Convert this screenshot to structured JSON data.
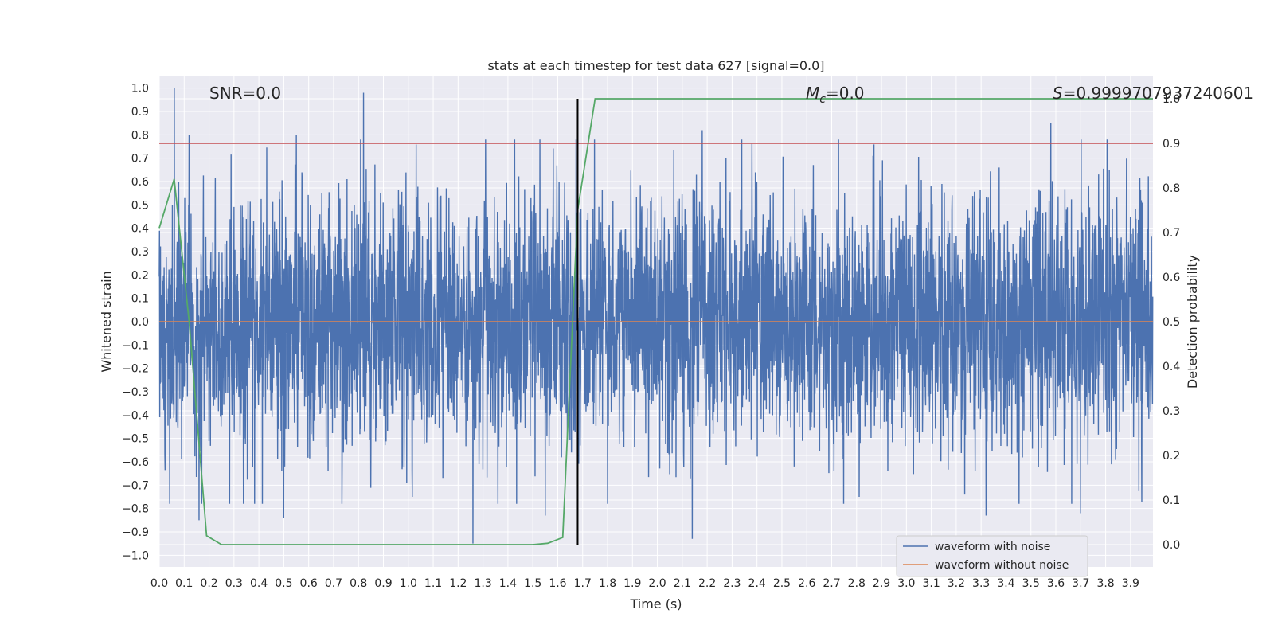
{
  "chart_data": {
    "type": "line",
    "title": "stats at each timestep for test data 627 [signal=0.0]",
    "xlabel": "Time (s)",
    "ylabel": "Whitened strain",
    "y2label": "Detection probability",
    "xlim": [
      0.0,
      3.99
    ],
    "ylim": [
      -1.05,
      1.05
    ],
    "y2lim": [
      -0.05,
      1.05
    ],
    "x_ticks": [
      "0.0",
      "0.1",
      "0.2",
      "0.3",
      "0.4",
      "0.5",
      "0.6",
      "0.7",
      "0.8",
      "0.9",
      "1.0",
      "1.1",
      "1.2",
      "1.3",
      "1.4",
      "1.5",
      "1.6",
      "1.7",
      "1.8",
      "1.9",
      "2.0",
      "2.1",
      "2.2",
      "2.3",
      "2.4",
      "2.5",
      "2.6",
      "2.7",
      "2.8",
      "2.9",
      "3.0",
      "3.1",
      "3.2",
      "3.3",
      "3.4",
      "3.5",
      "3.6",
      "3.7",
      "3.8",
      "3.9"
    ],
    "y_ticks": [
      "1.0",
      "0.9",
      "0.8",
      "0.7",
      "0.6",
      "0.5",
      "0.4",
      "0.3",
      "0.2",
      "0.1",
      "0.0",
      "−0.1",
      "−0.2",
      "−0.3",
      "−0.4",
      "−0.5",
      "−0.6",
      "−0.7",
      "−0.8",
      "−0.9",
      "−1.0"
    ],
    "y2_ticks": [
      "1.0",
      "0.9",
      "0.8",
      "0.7",
      "0.6",
      "0.5",
      "0.4",
      "0.3",
      "0.2",
      "0.1",
      "0.0"
    ],
    "annotations": {
      "snr": "SNR=0.0",
      "mc_symbol": "M",
      "mc_sub": "c",
      "mc_value": "=0.0",
      "s_symbol": "S",
      "s_value": "=0.9999707937240601"
    },
    "series": [
      {
        "name": "waveform with noise",
        "color": "#4c72b0",
        "kind": "noise",
        "approx_sd": 0.27,
        "samples": 4096,
        "peaks": [
          {
            "x": 0.06,
            "y": 1.0
          },
          {
            "x": 0.82,
            "y": 0.98
          },
          {
            "x": 0.12,
            "y": 0.8
          },
          {
            "x": 0.55,
            "y": 0.8
          },
          {
            "x": 2.18,
            "y": 0.82
          },
          {
            "x": 3.58,
            "y": 0.85
          },
          {
            "x": 1.26,
            "y": -0.95
          },
          {
            "x": 2.14,
            "y": -0.93
          },
          {
            "x": 0.16,
            "y": -0.85
          },
          {
            "x": 0.5,
            "y": -0.84
          },
          {
            "x": 1.55,
            "y": -0.83
          },
          {
            "x": 3.32,
            "y": -0.83
          },
          {
            "x": 3.7,
            "y": -0.82
          }
        ]
      },
      {
        "name": "waveform without noise",
        "color": "#dd8452",
        "kind": "line",
        "x": [
          0.0,
          3.99
        ],
        "y": [
          0.0,
          0.0
        ]
      },
      {
        "name": "Detection probability",
        "color": "#55a868",
        "axis": "right",
        "kind": "line",
        "x": [
          0.0,
          0.06,
          0.12,
          0.19,
          0.25,
          0.3,
          0.5,
          1.0,
          1.5,
          1.56,
          1.62,
          1.68,
          1.75,
          3.99
        ],
        "y": [
          0.71,
          0.82,
          0.5,
          0.02,
          0.0,
          0.0,
          0.0,
          0.0,
          0.0,
          0.003,
          0.016,
          0.75,
          1.0,
          1.0
        ]
      }
    ],
    "threshold": {
      "y2": 0.9,
      "color": "#c44e52"
    },
    "vline": {
      "x": 1.68,
      "color": "#000000"
    },
    "legend": {
      "position": "lower-right",
      "entries": [
        {
          "label": "waveform with noise",
          "color": "#4c72b0"
        },
        {
          "label": "waveform without noise",
          "color": "#dd8452"
        }
      ]
    },
    "colors": {
      "background": "#eaeaf2",
      "grid": "#ffffff"
    }
  }
}
